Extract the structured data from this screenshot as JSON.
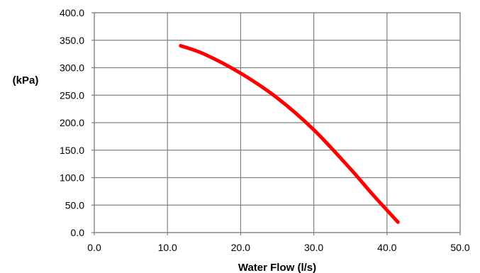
{
  "chart_data": {
    "type": "line",
    "title": "",
    "xlabel": "Water Flow (l/s)",
    "ylabel": "(kPa)",
    "xlim": [
      0,
      50
    ],
    "ylim": [
      0,
      400
    ],
    "x_ticks": [
      0,
      10,
      20,
      30,
      40,
      50
    ],
    "y_ticks": [
      0,
      50,
      100,
      150,
      200,
      250,
      300,
      350,
      400
    ],
    "x_tick_labels": [
      "0.0",
      "10.0",
      "20.0",
      "30.0",
      "40.0",
      "50.0"
    ],
    "y_tick_labels": [
      "0.0",
      "50.0",
      "100.0",
      "150.0",
      "200.0",
      "250.0",
      "300.0",
      "350.0",
      "400.0"
    ],
    "grid": true,
    "legend": "none",
    "colors": {
      "series": "#ff0000",
      "grid": "#808080",
      "background": "#ffffff"
    },
    "series": [
      {
        "x": [
          11.8,
          15,
          20,
          25,
          30,
          35,
          38,
          41.5
        ],
        "y": [
          340,
          325,
          290,
          245,
          187,
          116,
          70,
          19
        ]
      }
    ]
  }
}
